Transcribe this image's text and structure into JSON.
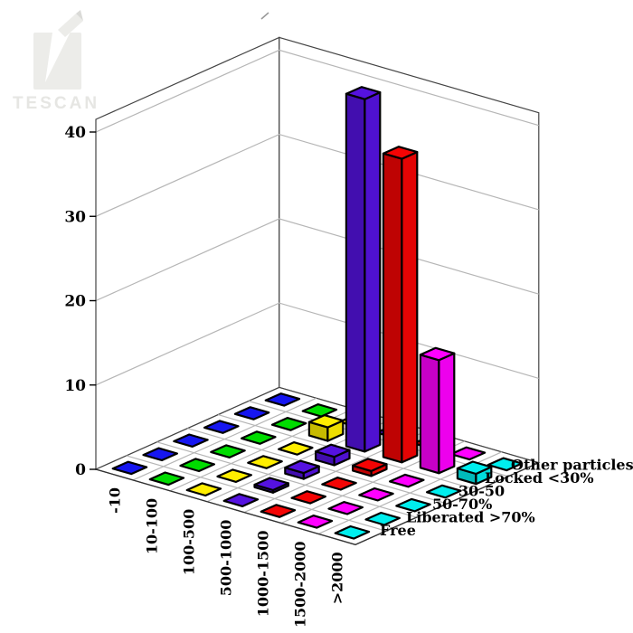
{
  "watermark": {
    "brand": "TESCAN"
  },
  "chart_data": {
    "type": "bar",
    "subtype": "bar3d",
    "title": "",
    "x_categories": [
      "-10",
      "10-100",
      "100-500",
      "500-1000",
      "1000-1500",
      "1500-2000",
      ">2000"
    ],
    "depth_categories": [
      "Free",
      "Liberated >70%",
      "50-70%",
      "30-50",
      "Locked <30%",
      "Other particles"
    ],
    "x_colors": [
      "#1616f0",
      "#00dc00",
      "#ffee00",
      "#5512e0",
      "#f40404",
      "#ff00ff",
      "#00eeee"
    ],
    "values": [
      [
        0,
        0,
        0,
        0,
        0,
        0
      ],
      [
        0,
        0,
        0,
        0,
        0,
        0
      ],
      [
        0,
        0,
        0,
        0,
        1.6,
        0
      ],
      [
        0,
        0.3,
        0.7,
        1.0,
        41.8,
        0
      ],
      [
        0,
        0,
        0,
        0.6,
        36.0,
        0
      ],
      [
        0,
        0,
        0,
        0,
        13.4,
        0
      ],
      [
        0,
        0,
        0,
        0,
        1.2,
        0
      ]
    ],
    "z_ticks": [
      0,
      10,
      20,
      30,
      40
    ],
    "zlim": [
      0,
      41.5
    ],
    "grid": true,
    "legend": "none",
    "wall_color": "#ffffff",
    "grid_color": "#b6b6b6",
    "edge_color": "#000000"
  }
}
